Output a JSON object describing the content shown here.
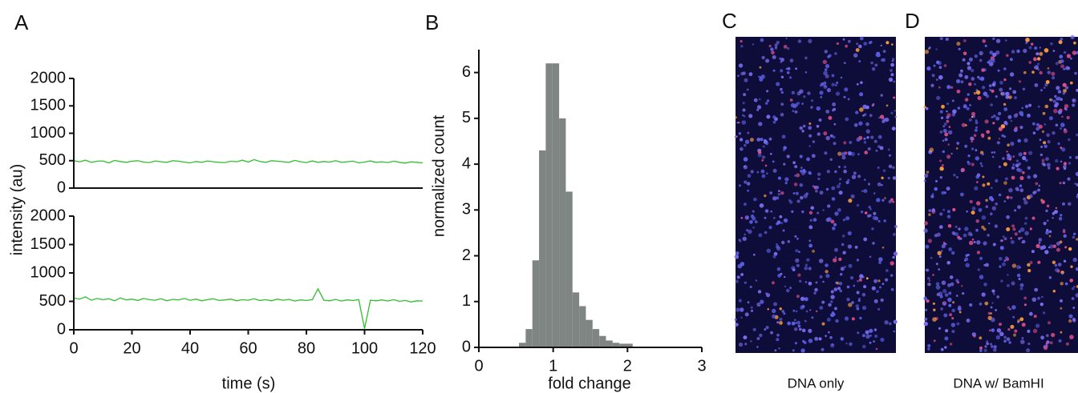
{
  "chart_data": [
    {
      "type": "line",
      "panel": "A",
      "ylabel": "intensity (au)",
      "color": "#2fbf2f",
      "x": [
        0,
        2,
        4,
        6,
        8,
        10,
        12,
        14,
        16,
        18,
        20,
        22,
        24,
        26,
        28,
        30,
        32,
        34,
        36,
        38,
        40,
        42,
        44,
        46,
        48,
        50,
        52,
        54,
        56,
        58,
        60,
        62,
        64,
        66,
        68,
        70,
        72,
        74,
        76,
        78,
        80,
        82,
        84,
        86,
        88,
        90,
        92,
        94,
        96,
        98,
        100,
        102,
        104,
        106,
        108,
        110,
        112,
        114,
        116,
        118,
        120
      ],
      "values": [
        500,
        480,
        510,
        470,
        490,
        495,
        460,
        505,
        485,
        470,
        490,
        500,
        475,
        465,
        495,
        480,
        470,
        500,
        490,
        475,
        460,
        485,
        470,
        495,
        480,
        470,
        465,
        490,
        480,
        510,
        475,
        520,
        485,
        470,
        500,
        490,
        480,
        470,
        505,
        480,
        465,
        495,
        470,
        485,
        475,
        500,
        470,
        480,
        490,
        460,
        475,
        495,
        470,
        480,
        465,
        490,
        470,
        455,
        480,
        470,
        460
      ],
      "xlim": [
        0,
        120
      ],
      "ylim": [
        0,
        2000
      ],
      "yticks": [
        0,
        500,
        1000,
        1500,
        2000
      ]
    },
    {
      "type": "line",
      "xlabel": "time (s)",
      "color": "#2fbf2f",
      "x": [
        0,
        2,
        4,
        6,
        8,
        10,
        12,
        14,
        16,
        18,
        20,
        22,
        24,
        26,
        28,
        30,
        32,
        34,
        36,
        38,
        40,
        42,
        44,
        46,
        48,
        50,
        52,
        54,
        56,
        58,
        60,
        62,
        64,
        66,
        68,
        70,
        72,
        74,
        76,
        78,
        80,
        82,
        84,
        86,
        88,
        90,
        92,
        94,
        96,
        98,
        100,
        102,
        104,
        106,
        108,
        110,
        112,
        114,
        116,
        118,
        120
      ],
      "values": [
        560,
        540,
        580,
        520,
        550,
        530,
        545,
        510,
        560,
        525,
        540,
        515,
        550,
        530,
        520,
        545,
        510,
        535,
        525,
        550,
        520,
        540,
        510,
        530,
        545,
        515,
        525,
        540,
        510,
        530,
        520,
        545,
        515,
        530,
        510,
        540,
        520,
        535,
        505,
        525,
        515,
        530,
        720,
        520,
        510,
        535,
        505,
        525,
        515,
        530,
        20,
        520,
        510,
        525,
        505,
        530,
        500,
        515,
        490,
        510,
        505
      ],
      "xlim": [
        0,
        120
      ],
      "ylim": [
        0,
        2000
      ],
      "xticks": [
        0,
        20,
        40,
        60,
        80,
        100,
        120
      ],
      "yticks": [
        0,
        500,
        1000,
        1500,
        2000
      ]
    },
    {
      "type": "histogram",
      "panel": "B",
      "xlabel": "fold change",
      "ylabel": "normalized count",
      "color": "#7f8582",
      "bins": [
        0.54,
        0.63,
        0.72,
        0.81,
        0.9,
        0.99,
        1.08,
        1.17,
        1.26,
        1.35,
        1.44,
        1.53,
        1.62,
        1.71,
        1.8,
        1.89,
        1.98,
        2.07
      ],
      "counts": [
        0.1,
        0.4,
        1.9,
        4.3,
        6.2,
        6.2,
        5.0,
        3.4,
        1.2,
        0.9,
        0.6,
        0.4,
        0.25,
        0.15,
        0.1,
        0.08,
        0.08
      ],
      "xlim": [
        0,
        3
      ],
      "ylim": [
        0,
        6.5
      ],
      "xticks": [
        0,
        1,
        2,
        3
      ],
      "yticks": [
        0,
        1,
        2,
        3,
        4,
        5,
        6
      ]
    },
    {
      "type": "image",
      "panel": "C",
      "caption": "DNA only"
    },
    {
      "type": "image",
      "panel": "D",
      "caption": "DNA w/ BamHI"
    }
  ]
}
